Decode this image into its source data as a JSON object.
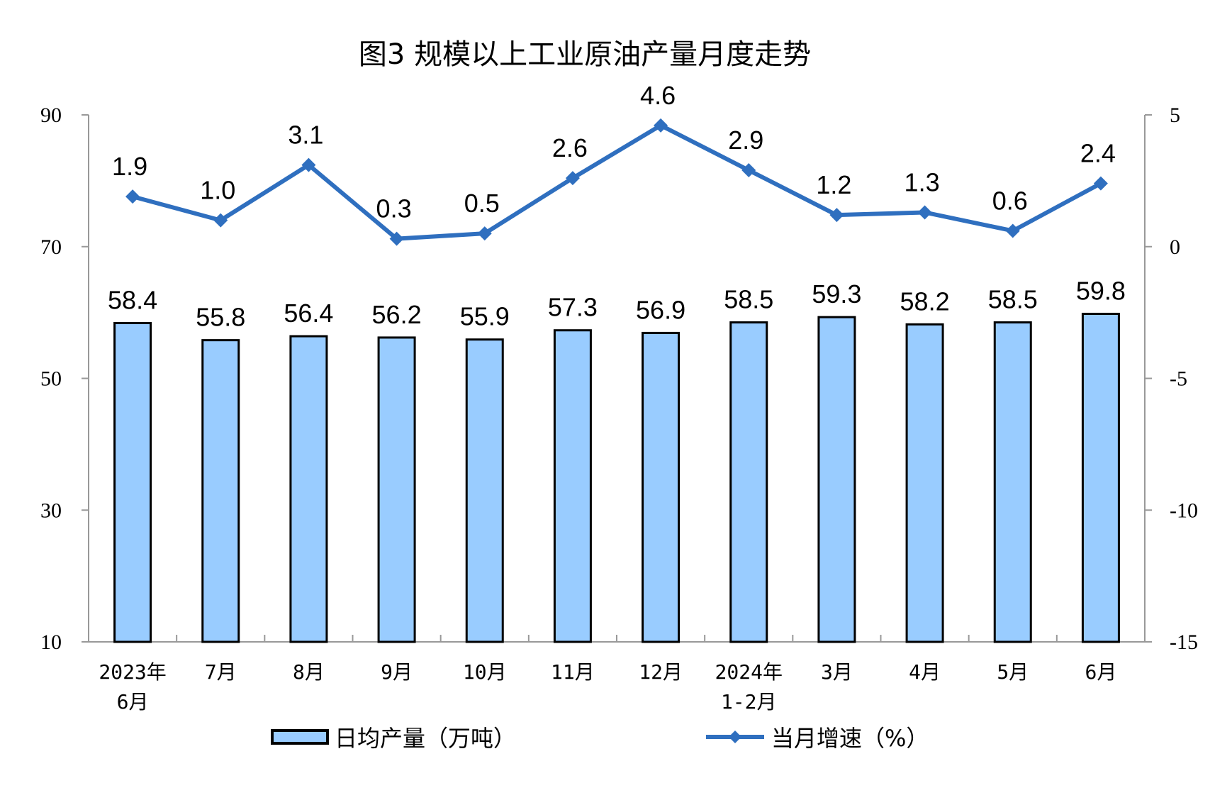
{
  "chart_data": {
    "type": "bar+line",
    "title": "图3  规模以上工业原油产量月度走势",
    "categories": [
      [
        "2023年",
        "6月"
      ],
      [
        "7月"
      ],
      [
        "8月"
      ],
      [
        "9月"
      ],
      [
        "10月"
      ],
      [
        "11月"
      ],
      [
        "12月"
      ],
      [
        "2024年",
        "1-2月"
      ],
      [
        "3月"
      ],
      [
        "4月"
      ],
      [
        "5月"
      ],
      [
        "6月"
      ]
    ],
    "series": [
      {
        "name": "日均产量（万吨）",
        "type": "bar",
        "axis": "left",
        "color": "#99ccff",
        "values": [
          58.4,
          55.8,
          56.4,
          56.2,
          55.9,
          57.3,
          56.9,
          58.5,
          59.3,
          58.2,
          58.5,
          59.8
        ]
      },
      {
        "name": "当月增速（%）",
        "type": "line",
        "axis": "right",
        "color": "#2f6fbf",
        "values": [
          1.9,
          1.0,
          3.1,
          0.3,
          0.5,
          2.6,
          4.6,
          2.9,
          1.2,
          1.3,
          0.6,
          2.4
        ]
      }
    ],
    "left_axis": {
      "ylim": [
        10,
        90
      ],
      "ticks": [
        "10",
        "30",
        "50",
        "70",
        "90"
      ]
    },
    "right_axis": {
      "ylim": [
        -15,
        5
      ],
      "ticks": [
        "-15",
        "-10",
        "-5",
        "0",
        "5"
      ]
    },
    "grid": false,
    "legend": "bottom"
  }
}
